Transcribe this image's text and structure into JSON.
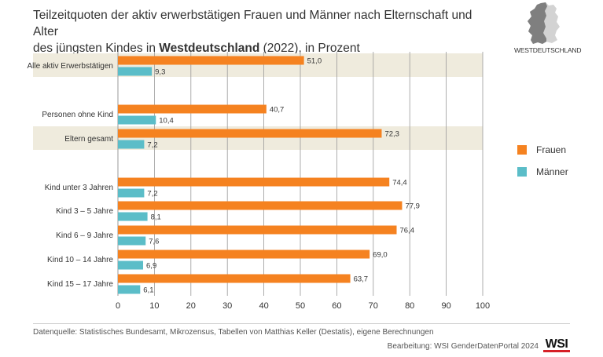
{
  "title": {
    "line1": "Teilzeitquoten der aktiv erwerbstätigen Frauen und Männer nach Elternschaft und Alter",
    "line2_pre": "des jüngsten Kindes in ",
    "line2_bold": "Westdeutschland",
    "line2_post": " (2022), in Prozent"
  },
  "map_label": "WESTDEUTSCHLAND",
  "colors": {
    "frauen": "#f58220",
    "maenner": "#5bbdc8",
    "band": "#efebdd",
    "grid": "#9a9a9a"
  },
  "legend": [
    {
      "label": "Frauen",
      "color": "#f58220"
    },
    {
      "label": "Männer",
      "color": "#5bbdc8"
    }
  ],
  "chart_data": {
    "type": "bar",
    "orientation": "horizontal",
    "categories": [
      "Alle aktiv Erwerbstätigen",
      "Personen ohne Kind",
      "Eltern gesamt",
      "Kind unter 3 Jahren",
      "Kind 3 – 5 Jahre",
      "Kind 6 – 9 Jahre",
      "Kind 10 – 14 Jahre",
      "Kind 15 – 17 Jahre"
    ],
    "series": [
      {
        "name": "Frauen",
        "values": [
          51.0,
          40.7,
          72.3,
          74.4,
          77.9,
          76.4,
          69.0,
          63.7
        ],
        "labels": [
          "51,0",
          "40,7",
          "72,3",
          "74,4",
          "77,9",
          "76,4",
          "69,0",
          "63,7"
        ]
      },
      {
        "name": "Männer",
        "values": [
          9.3,
          10.4,
          7.2,
          7.2,
          8.1,
          7.6,
          6.9,
          6.1
        ],
        "labels": [
          "9,3",
          "10,4",
          "7,2",
          "7,2",
          "8,1",
          "7,6",
          "6,9",
          "6,1"
        ]
      }
    ],
    "xlim": [
      0,
      100
    ],
    "xticks": [
      0,
      10,
      20,
      30,
      40,
      50,
      60,
      70,
      80,
      90,
      100
    ],
    "grid": true,
    "highlighted_categories": [
      "Alle aktiv Erwerbstätigen",
      "Eltern gesamt"
    ],
    "legend_position": "right"
  },
  "source": "Datenquelle: Statistisches Bundesamt, Mikrozensus, Tabellen von Matthias Keller (Destatis), eigene Berechnungen",
  "credit": "Bearbeitung: WSI GenderDatenPortal 2024",
  "logo_text": "WSI"
}
